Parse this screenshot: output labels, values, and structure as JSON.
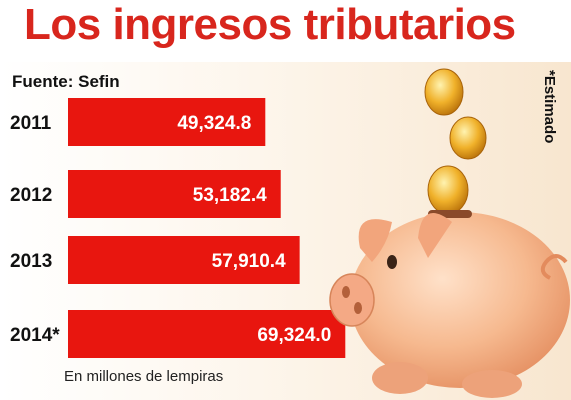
{
  "header": {
    "title": "Los ingresos tributarios"
  },
  "source": "Fuente: Sefin",
  "note": "*Estimado",
  "unit_caption": "En millones de lempiras",
  "colors": {
    "title": "#d8261d",
    "bar": "#e8160f"
  },
  "chart_data": {
    "type": "bar",
    "orientation": "horizontal",
    "title": "Los ingresos tributarios",
    "categories": [
      "2011",
      "2012",
      "2013",
      "2014*"
    ],
    "values": [
      49324.8,
      53182.4,
      57910.4,
      69324.0
    ],
    "value_labels": [
      "49,324.8",
      "53,182.4",
      "57,910.4",
      "69,324.0"
    ],
    "xlabel": "En millones de lempiras",
    "ylabel": "",
    "grid": false,
    "legend": "none"
  }
}
